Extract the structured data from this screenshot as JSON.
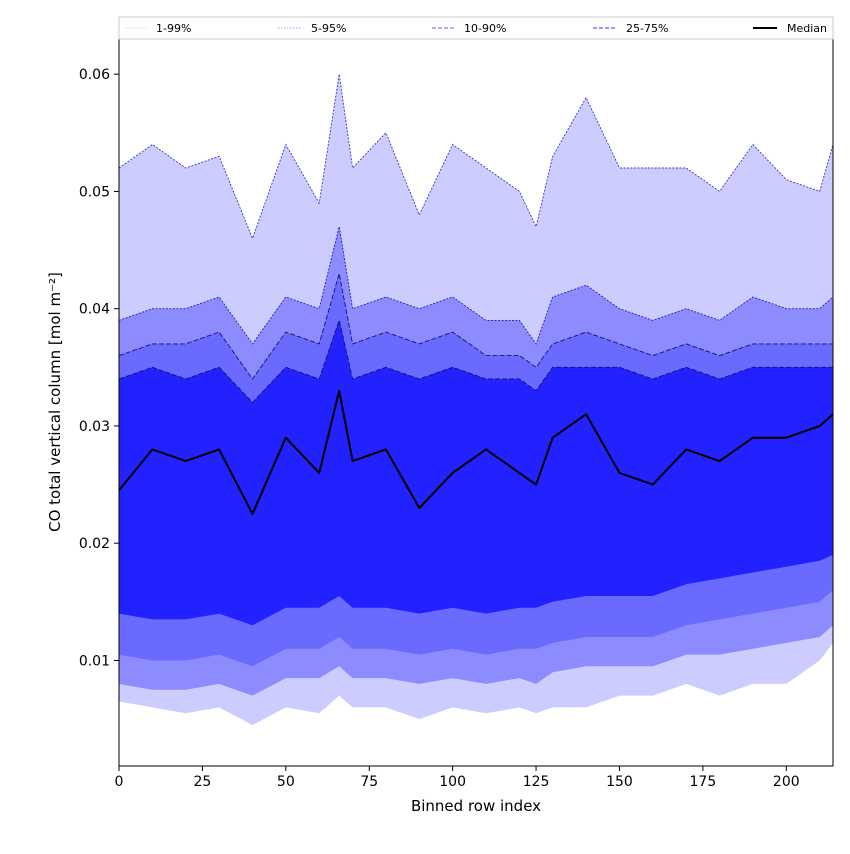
{
  "chart_data": {
    "type": "area",
    "xlabel": "Binned row index",
    "ylabel": "CO total vertical column [mol m⁻²]",
    "xlim": [
      0,
      214
    ],
    "ylim": [
      0.001,
      0.063
    ],
    "x_ticks": [
      "0",
      "25",
      "50",
      "75",
      "100",
      "125",
      "150",
      "175",
      "200"
    ],
    "y_ticks": [
      "0.01",
      "0.02",
      "0.03",
      "0.04",
      "0.05",
      "0.06"
    ],
    "grid": false,
    "legend_position": "top",
    "legend": [
      {
        "label": "1-99%",
        "color": "#ccccff",
        "style": "dotted"
      },
      {
        "label": "5-95%",
        "color": "#9999ff",
        "style": "dotted"
      },
      {
        "label": "10-90%",
        "color": "#6666ff",
        "style": "dashed"
      },
      {
        "label": "25-75%",
        "color": "#3333ff",
        "style": "dashed"
      },
      {
        "label": "Median",
        "color": "#000000",
        "style": "solid"
      }
    ],
    "colors": {
      "band_1_99": "#ccccff",
      "band_5_95": "#8c8cff",
      "band_10_90": "#6a6aff",
      "band_25_75": "#2222ff",
      "upper_99_line": "#3333cc",
      "upper_95_line": "#1a1acc",
      "upper_90_line": "#101080",
      "median_line": "#000000"
    },
    "x": [
      0,
      10,
      20,
      30,
      40,
      50,
      60,
      66,
      70,
      80,
      90,
      100,
      110,
      120,
      125,
      130,
      140,
      150,
      160,
      170,
      180,
      190,
      200,
      210,
      214
    ],
    "series": [
      {
        "name": "1-99%",
        "upper": [
          0.052,
          0.054,
          0.052,
          0.053,
          0.046,
          0.054,
          0.049,
          0.06,
          0.052,
          0.055,
          0.048,
          0.054,
          0.052,
          0.05,
          0.047,
          0.053,
          0.058,
          0.052,
          0.052,
          0.052,
          0.05,
          0.054,
          0.051,
          0.05,
          0.054
        ],
        "lower": [
          0.0065,
          0.006,
          0.0055,
          0.006,
          0.0045,
          0.006,
          0.0055,
          0.007,
          0.006,
          0.006,
          0.005,
          0.006,
          0.0055,
          0.006,
          0.0055,
          0.006,
          0.006,
          0.007,
          0.007,
          0.008,
          0.007,
          0.008,
          0.008,
          0.01,
          0.0115
        ]
      },
      {
        "name": "5-95%",
        "upper": [
          0.039,
          0.04,
          0.04,
          0.041,
          0.037,
          0.041,
          0.04,
          0.047,
          0.04,
          0.041,
          0.04,
          0.041,
          0.039,
          0.039,
          0.037,
          0.041,
          0.042,
          0.04,
          0.039,
          0.04,
          0.039,
          0.041,
          0.04,
          0.04,
          0.041
        ],
        "lower": [
          0.008,
          0.0075,
          0.0075,
          0.008,
          0.007,
          0.0085,
          0.0085,
          0.0095,
          0.0085,
          0.0085,
          0.008,
          0.0085,
          0.008,
          0.0085,
          0.008,
          0.009,
          0.0095,
          0.0095,
          0.0095,
          0.0105,
          0.0105,
          0.011,
          0.0115,
          0.012,
          0.013
        ]
      },
      {
        "name": "10-90%",
        "upper": [
          0.036,
          0.037,
          0.037,
          0.038,
          0.034,
          0.038,
          0.037,
          0.043,
          0.037,
          0.038,
          0.037,
          0.038,
          0.036,
          0.036,
          0.035,
          0.037,
          0.038,
          0.037,
          0.036,
          0.037,
          0.036,
          0.037,
          0.037,
          0.037,
          0.037
        ],
        "lower": [
          0.0105,
          0.01,
          0.01,
          0.0105,
          0.0095,
          0.011,
          0.011,
          0.012,
          0.011,
          0.011,
          0.0105,
          0.011,
          0.0105,
          0.011,
          0.011,
          0.0115,
          0.012,
          0.012,
          0.012,
          0.013,
          0.0135,
          0.014,
          0.0145,
          0.015,
          0.016
        ]
      },
      {
        "name": "25-75%",
        "upper": [
          0.034,
          0.035,
          0.034,
          0.035,
          0.032,
          0.035,
          0.034,
          0.039,
          0.034,
          0.035,
          0.034,
          0.035,
          0.034,
          0.034,
          0.033,
          0.035,
          0.035,
          0.035,
          0.034,
          0.035,
          0.034,
          0.035,
          0.035,
          0.035,
          0.035
        ],
        "lower": [
          0.014,
          0.0135,
          0.0135,
          0.014,
          0.013,
          0.0145,
          0.0145,
          0.0155,
          0.0145,
          0.0145,
          0.014,
          0.0145,
          0.014,
          0.0145,
          0.0145,
          0.015,
          0.0155,
          0.0155,
          0.0155,
          0.0165,
          0.017,
          0.0175,
          0.018,
          0.0185,
          0.019
        ]
      },
      {
        "name": "Median",
        "values": [
          0.0245,
          0.028,
          0.027,
          0.028,
          0.0225,
          0.029,
          0.026,
          0.033,
          0.027,
          0.028,
          0.023,
          0.026,
          0.028,
          0.026,
          0.025,
          0.029,
          0.031,
          0.026,
          0.025,
          0.028,
          0.027,
          0.029,
          0.029,
          0.03,
          0.031
        ]
      }
    ]
  }
}
